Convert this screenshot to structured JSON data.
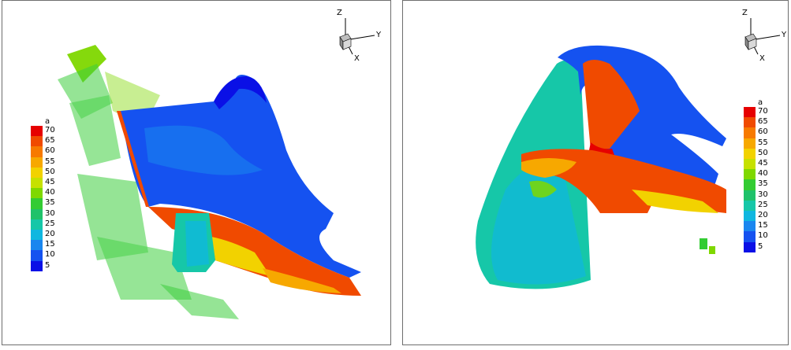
{
  "panels": [
    {
      "id": "left",
      "legend": {
        "title": "a",
        "levels": [
          "70",
          "65",
          "60",
          "55",
          "50",
          "45",
          "40",
          "35",
          "30",
          "25",
          "20",
          "15",
          "10",
          "5"
        ]
      },
      "axes": {
        "z": "Z",
        "y": "Y",
        "x": "X"
      }
    },
    {
      "id": "right",
      "legend": {
        "title": "a",
        "levels": [
          "70",
          "65",
          "60",
          "55",
          "50",
          "45",
          "40",
          "35",
          "30",
          "25",
          "20",
          "15",
          "10",
          "5"
        ]
      },
      "axes": {
        "z": "Z",
        "y": "Y",
        "x": "X"
      }
    }
  ],
  "colormap": [
    "#e60000",
    "#f04a00",
    "#f77a00",
    "#f7a800",
    "#f2d200",
    "#c6e100",
    "#7fd800",
    "#33cc33",
    "#1fc26a",
    "#16c7a8",
    "#0fb7e0",
    "#1a86ef",
    "#1552f0",
    "#0a10e6"
  ]
}
